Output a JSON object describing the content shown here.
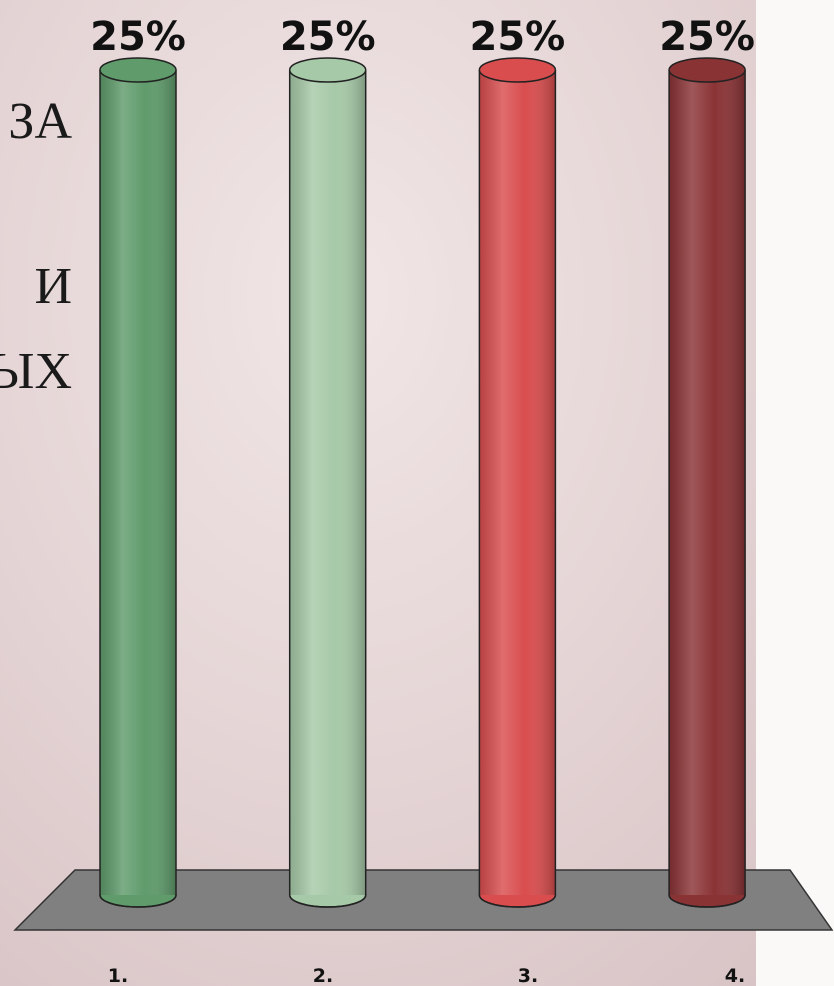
{
  "chart_data": {
    "type": "bar3d",
    "categories": [
      "1.",
      "2.",
      "3.",
      "4."
    ],
    "values": [
      25,
      25,
      25,
      25
    ],
    "value_labels": [
      "25%",
      "25%",
      "25%",
      "25%"
    ],
    "colors": [
      "#5f9b6b",
      "#a6c9a7",
      "#d94d4e",
      "#8a3335"
    ],
    "annotations": [
      "ЗА",
      "И",
      "ЫХ"
    ]
  }
}
